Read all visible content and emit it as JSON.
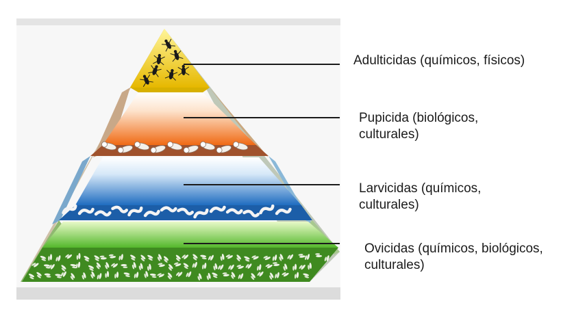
{
  "layers": [
    {
      "id": "adult",
      "lines": [
        "Adulticidas (químicos, físicos)"
      ],
      "color": "#e8c21a",
      "icon": "adult-mosquito-icon"
    },
    {
      "id": "pupa",
      "lines": [
        "Pupicida (biológicos,",
        "culturales)"
      ],
      "color": "#f07a28",
      "icon": "pupa-icon"
    },
    {
      "id": "larva",
      "lines": [
        "Larvicidas (químicos,",
        "culturales)"
      ],
      "color": "#2a78c8",
      "icon": "larva-icon"
    },
    {
      "id": "egg",
      "lines": [
        "Ovicidas (químicos, biológicos,",
        "culturales)"
      ],
      "color": "#4aa028",
      "icon": "egg-icon"
    }
  ]
}
